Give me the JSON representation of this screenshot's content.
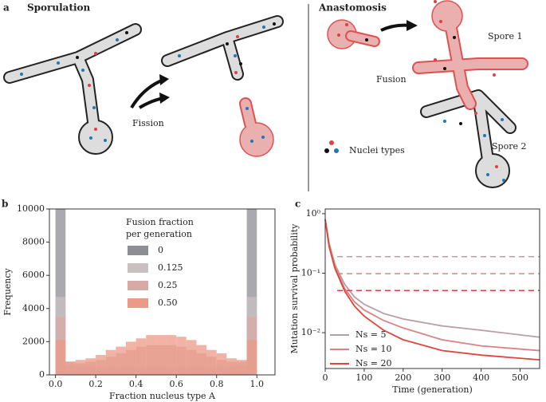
{
  "diagram": {
    "panel": "a",
    "sporulation": "Sporulation",
    "fission": "Fission",
    "anastomosis": "Anastomosis",
    "spore1": "Spore 1",
    "fusion": "Fusion",
    "nuclei_types": "Nuclei types",
    "spore2": "Spore 2"
  },
  "chart_data": [
    {
      "type": "histogram",
      "panel": "b",
      "xlabel": "Fraction nucleus type A",
      "ylabel": "Frequency",
      "legend_title": [
        "Fusion fraction",
        "per generation"
      ],
      "bins": [
        0,
        0.05,
        0.1,
        0.15,
        0.2,
        0.25,
        0.3,
        0.35,
        0.4,
        0.45,
        0.5,
        0.55,
        0.6,
        0.65,
        0.7,
        0.75,
        0.8,
        0.85,
        0.9,
        0.95,
        1.0
      ],
      "series": [
        {
          "name": "0",
          "color": "#8d8e93",
          "values": [
            10000,
            0,
            0,
            0,
            0,
            0,
            0,
            0,
            0,
            0,
            0,
            0,
            0,
            0,
            0,
            0,
            0,
            0,
            0,
            10000
          ]
        },
        {
          "name": "0.125",
          "color": "#c8c0c1",
          "values": [
            4700,
            600,
            500,
            500,
            500,
            500,
            500,
            500,
            500,
            500,
            500,
            500,
            500,
            500,
            500,
            500,
            500,
            500,
            600,
            4700
          ]
        },
        {
          "name": "0.25",
          "color": "#d8aaa6",
          "values": [
            3500,
            800,
            700,
            800,
            900,
            1100,
            1300,
            1500,
            1700,
            1800,
            1800,
            1800,
            1700,
            1500,
            1300,
            1100,
            900,
            800,
            800,
            3500
          ]
        },
        {
          "name": "0.50",
          "color": "#eb9a87",
          "values": [
            2100,
            800,
            900,
            1000,
            1200,
            1500,
            1700,
            2000,
            2200,
            2400,
            2400,
            2400,
            2300,
            2100,
            1800,
            1500,
            1300,
            1000,
            900,
            2100
          ]
        }
      ],
      "xlim": [
        -0.03,
        1.09
      ],
      "xticks": [
        {
          "value": 0,
          "label": "0.0"
        },
        0.2,
        0.4,
        0.6,
        0.8,
        {
          "value": 1,
          "label": "1.0"
        }
      ],
      "ylim": [
        0,
        10000
      ],
      "yticks": [
        0,
        2000,
        4000,
        6000,
        8000,
        10000
      ]
    },
    {
      "type": "line",
      "panel": "c",
      "xlabel": "Time (generation)",
      "ylabel": "Mutation survival probability",
      "log_y": true,
      "x": [
        0,
        10,
        25,
        50,
        75,
        100,
        150,
        200,
        300,
        400,
        550
      ],
      "series": [
        {
          "name": "Ns = 5",
          "color": "#b89ea6",
          "asymptote": 0.19,
          "values": [
            0.8,
            0.32,
            0.14,
            0.065,
            0.04,
            0.03,
            0.021,
            0.017,
            0.013,
            0.011,
            0.0084
          ]
        },
        {
          "name": "Ns = 10",
          "color": "#d98383",
          "asymptote": 0.098,
          "values": [
            0.8,
            0.3,
            0.13,
            0.055,
            0.033,
            0.024,
            0.016,
            0.012,
            0.0076,
            0.006,
            0.005
          ]
        },
        {
          "name": "Ns = 20",
          "color": "#e0443c",
          "asymptote": 0.051,
          "values": [
            0.8,
            0.28,
            0.12,
            0.05,
            0.028,
            0.019,
            0.011,
            0.0076,
            0.005,
            0.0042,
            0.0035
          ]
        }
      ],
      "xlim": [
        0,
        550
      ],
      "xticks": [
        0,
        100,
        200,
        300,
        400,
        500
      ],
      "ylim": [
        0.0025,
        1.2
      ],
      "yticks": [
        {
          "value": 1,
          "label": "10⁰"
        },
        {
          "value": 0.1,
          "label": "10⁻¹"
        },
        {
          "value": 0.01,
          "label": "10⁻²"
        }
      ]
    }
  ]
}
